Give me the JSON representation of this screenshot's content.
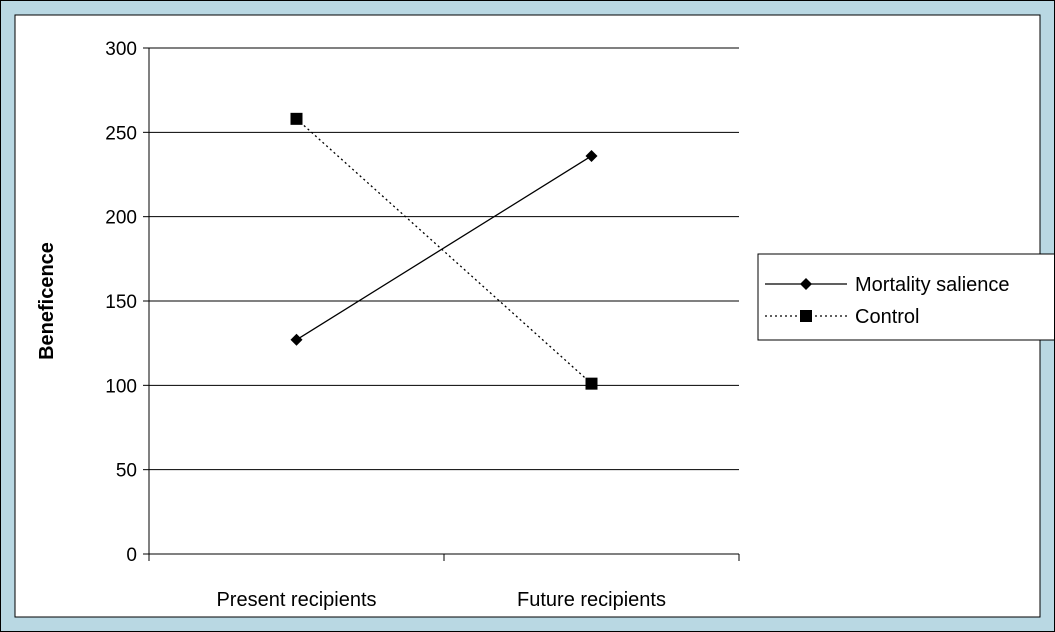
{
  "colors": {
    "outer_border": "#b9d8e3",
    "plot_background": "#ffffff",
    "gridline": "#000000",
    "axis": "#000000",
    "series_color": "#000000"
  },
  "chart_data": {
    "type": "line",
    "title": "",
    "xlabel": "",
    "ylabel": "Beneficence",
    "categories": [
      "Present recipients",
      "Future recipients"
    ],
    "ylim": [
      0,
      300
    ],
    "yticks": [
      0,
      50,
      100,
      150,
      200,
      250,
      300
    ],
    "grid": true,
    "legend_position": "right",
    "series": [
      {
        "name": "Mortality salience",
        "values": [
          127,
          236
        ],
        "marker": "diamond-icon",
        "line_style": "solid"
      },
      {
        "name": "Control",
        "values": [
          258,
          101
        ],
        "marker": "square-icon",
        "line_style": "dotted"
      }
    ]
  }
}
